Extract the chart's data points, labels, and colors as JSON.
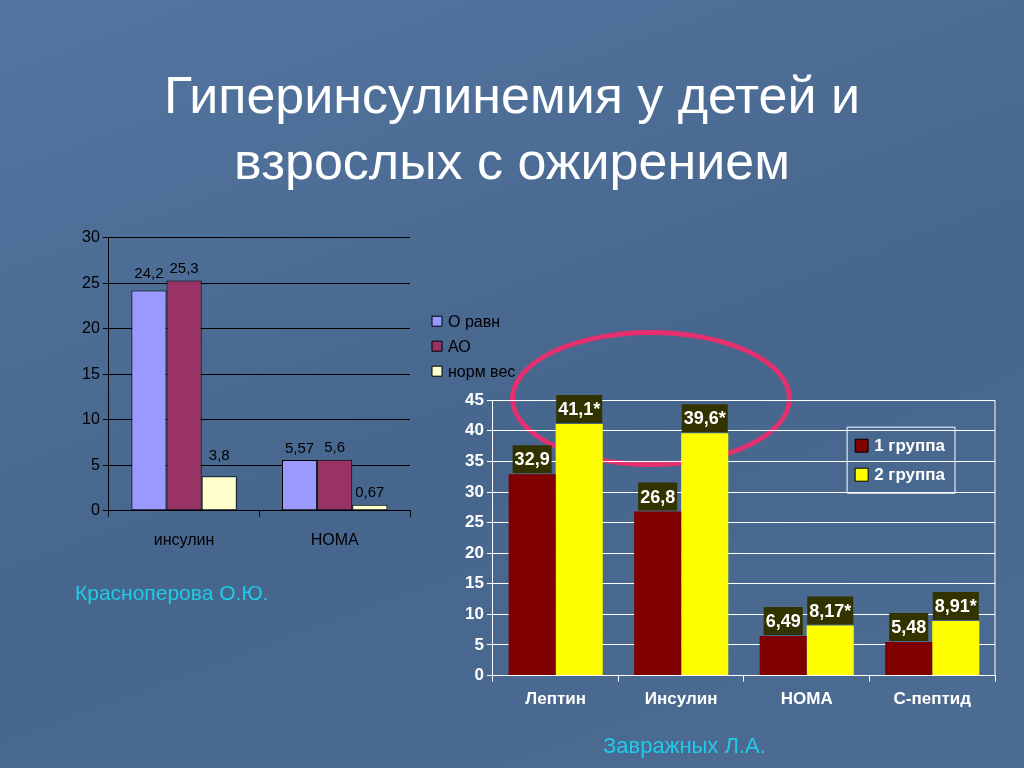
{
  "chart_data": [
    {
      "type": "bar",
      "title": "Гиперинсулинемия у детей и взрослых с ожирением",
      "categories": [
        "инсулин",
        "HOMA"
      ],
      "series": [
        {
          "name": "О равн",
          "color": "#9999ff",
          "values": [
            24.2,
            5.57
          ],
          "value_labels": [
            "24,2",
            "5,57"
          ]
        },
        {
          "name": "АО",
          "color": "#993366",
          "values": [
            25.3,
            5.6
          ],
          "value_labels": [
            "25,3",
            "5,6"
          ]
        },
        {
          "name": "норм вес",
          "color": "#ffffcc",
          "values": [
            3.8,
            0.67
          ],
          "value_labels": [
            "3,8",
            "0,67"
          ]
        }
      ],
      "ylim": [
        0,
        30
      ],
      "yticks": [
        0,
        5,
        10,
        15,
        20,
        25,
        30
      ],
      "grid": "y",
      "legend": "right",
      "annotations": [
        "Красноперова О.Ю."
      ]
    },
    {
      "type": "bar",
      "categories": [
        "Лептин",
        "Инсулин",
        "HOMA",
        "С-пептид"
      ],
      "series": [
        {
          "name": "1 группа",
          "color": "#800000",
          "values": [
            32.9,
            26.8,
            6.49,
            5.48
          ],
          "value_labels": [
            "32,9",
            "26,8",
            "6,49",
            "5,48"
          ]
        },
        {
          "name": "2 группа",
          "color": "#ffff00",
          "values": [
            41.1,
            39.6,
            8.17,
            8.91
          ],
          "value_labels": [
            "41,1*",
            "39,6*",
            "8,17*",
            "8,91*"
          ]
        }
      ],
      "ylim": [
        0,
        45
      ],
      "yticks": [
        0,
        5,
        10,
        15,
        20,
        25,
        30,
        35,
        40,
        45
      ],
      "grid": "y",
      "legend": "top right",
      "annotations": [
        "Завражных Л.А."
      ]
    }
  ]
}
